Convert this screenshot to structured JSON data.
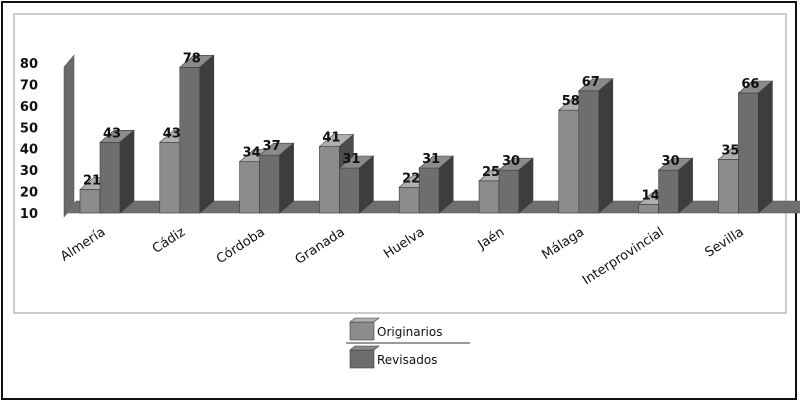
{
  "chart_data": {
    "type": "bar",
    "title": "",
    "xlabel": "",
    "ylabel": "",
    "ylim": [
      10,
      80
    ],
    "yticks": [
      10,
      20,
      30,
      40,
      50,
      60,
      70,
      80
    ],
    "categories": [
      "Almería",
      "Cádiz",
      "Córdoba",
      "Granada",
      "Huelva",
      "Jaén",
      "Málaga",
      "Interprovincial",
      "Sevilla"
    ],
    "series": [
      {
        "name": "Originarios",
        "values": [
          21,
          43,
          34,
          41,
          22,
          25,
          58,
          14,
          35
        ],
        "color": "#8c8c8c"
      },
      {
        "name": "Revisados",
        "values": [
          43,
          78,
          37,
          31,
          31,
          30,
          67,
          30,
          66
        ],
        "color": "#6e6e6e"
      }
    ],
    "legend_position": "bottom",
    "grid": false,
    "style": "3d"
  }
}
